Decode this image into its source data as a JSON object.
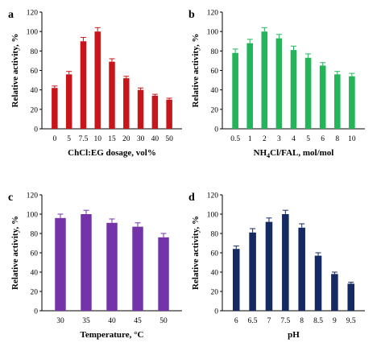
{
  "chart_data": [
    {
      "panel": "a",
      "type": "bar",
      "xlabel": "ChCl:EG dosage, vol%",
      "ylabel": "Relative activity, %",
      "categories": [
        "0",
        "5",
        "7.5",
        "10",
        "15",
        "20",
        "30",
        "40",
        "50"
      ],
      "values": [
        42,
        56,
        90,
        100,
        69,
        52,
        40,
        34,
        30
      ],
      "errors": [
        2,
        3,
        4,
        4,
        3,
        2,
        2,
        1.5,
        1.5
      ],
      "ylim": [
        0,
        120
      ],
      "yticks": [
        0,
        20,
        40,
        60,
        80,
        100,
        120
      ],
      "color": "#c8151b"
    },
    {
      "panel": "b",
      "type": "bar",
      "xlabel_main": "NH",
      "xlabel_sub": "4",
      "xlabel_rest": "Cl/FAL, mol/mol",
      "ylabel": "Relative activity, %",
      "categories": [
        "0.5",
        "1",
        "2",
        "3",
        "4",
        "5",
        "6",
        "8",
        "10"
      ],
      "values": [
        78,
        88,
        100,
        93,
        81,
        73,
        65,
        56,
        54
      ],
      "errors": [
        4,
        4,
        4,
        4,
        4,
        4,
        3,
        3,
        3
      ],
      "ylim": [
        0,
        120
      ],
      "yticks": [
        0,
        20,
        40,
        60,
        80,
        100,
        120
      ],
      "color": "#22b55a"
    },
    {
      "panel": "c",
      "type": "bar",
      "xlabel": "Temperature, °C",
      "ylabel": "Relative activity, %",
      "categories": [
        "30",
        "35",
        "40",
        "45",
        "50"
      ],
      "values": [
        96,
        100,
        91,
        87,
        76
      ],
      "errors": [
        4,
        4,
        4,
        4,
        4
      ],
      "ylim": [
        0,
        120
      ],
      "yticks": [
        0,
        20,
        40,
        60,
        80,
        100,
        120
      ],
      "color": "#7433a6"
    },
    {
      "panel": "d",
      "type": "bar",
      "xlabel": "pH",
      "ylabel": "Relative activity, %",
      "categories": [
        "6",
        "6.5",
        "7",
        "7.5",
        "8",
        "8.5",
        "9",
        "9.5"
      ],
      "values": [
        64,
        81,
        92,
        100,
        86,
        57,
        38,
        28
      ],
      "errors": [
        3,
        4,
        4,
        4,
        4,
        3,
        2,
        1.5
      ],
      "ylim": [
        0,
        120
      ],
      "yticks": [
        0,
        20,
        40,
        60,
        80,
        100,
        120
      ],
      "color": "#152a63"
    }
  ]
}
